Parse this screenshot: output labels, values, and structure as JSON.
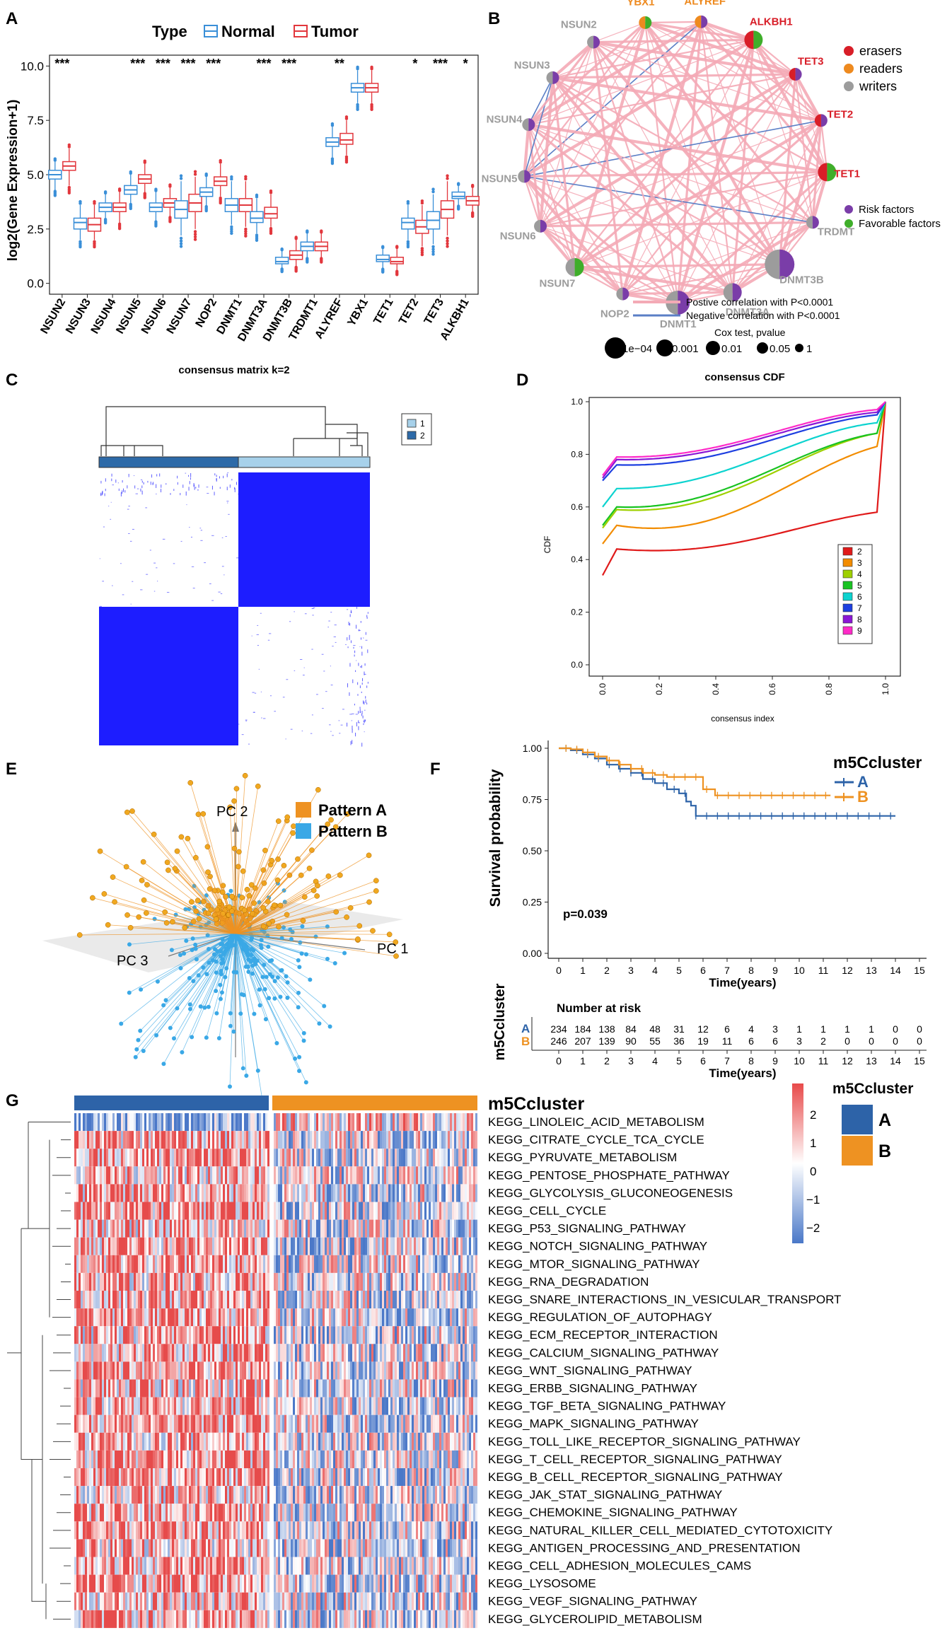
{
  "colors": {
    "normal": "#3a8fd8",
    "tumor": "#e2373d",
    "eraser": "#d81e28",
    "reader": "#ee8a1f",
    "writer": "#9c9c9c",
    "risk": "#7a3da8",
    "favorable": "#3fae2a",
    "pos_edge": "#f4aab6",
    "neg_edge": "#5b7fc6",
    "heat_blue": "#1d1dff",
    "clusterA": "#2d63a8",
    "clusterB": "#ee9222",
    "heat_high": "#e84a4a",
    "heat_low": "#4a78c8"
  },
  "panels": {
    "a": {
      "letter": "A",
      "chart_data": {
        "type": "boxplot",
        "legend_title": "Type",
        "legend": [
          "Normal",
          "Tumor"
        ],
        "ylabel": "log2(Gene Expression+1)",
        "ylim": [
          -0.5,
          10.5
        ],
        "yticks": [
          "0.0",
          "2.5",
          "5.0",
          "7.5",
          "10.0"
        ],
        "categories": [
          "NSUN2",
          "NSUN3",
          "NSUN4",
          "NSUN5",
          "NSUN6",
          "NSUN7",
          "NOP2",
          "DNMT1",
          "DNMT3A",
          "DNMT3B",
          "TRDMT1",
          "ALYREF",
          "YBX1",
          "TET1",
          "TET2",
          "TET3",
          "ALKBH1"
        ],
        "significance": [
          "***",
          "",
          "",
          "***",
          "***",
          "***",
          "***",
          "",
          "***",
          "***",
          "",
          "**",
          "",
          "",
          "*",
          "***",
          "*"
        ],
        "series": [
          {
            "name": "Normal",
            "boxes": [
              [
                4.3,
                4.8,
                5.0,
                5.2,
                5.6
              ],
              [
                2.0,
                2.5,
                2.8,
                3.0,
                3.6
              ],
              [
                3.0,
                3.3,
                3.5,
                3.7,
                4.1
              ],
              [
                3.7,
                4.1,
                4.3,
                4.5,
                5.0
              ],
              [
                2.9,
                3.3,
                3.5,
                3.7,
                4.2
              ],
              [
                2.2,
                3.0,
                3.4,
                3.8,
                4.7
              ],
              [
                3.6,
                4.0,
                4.2,
                4.4,
                4.9
              ],
              [
                2.7,
                3.3,
                3.6,
                3.9,
                4.7
              ],
              [
                2.3,
                2.8,
                3.0,
                3.3,
                3.9
              ],
              [
                0.7,
                0.9,
                1.0,
                1.2,
                1.5
              ],
              [
                1.2,
                1.5,
                1.7,
                1.9,
                2.3
              ],
              [
                5.8,
                6.3,
                6.5,
                6.7,
                7.2
              ],
              [
                8.3,
                8.8,
                9.0,
                9.2,
                9.8
              ],
              [
                0.7,
                1.0,
                1.1,
                1.3,
                1.6
              ],
              [
                2.0,
                2.5,
                2.8,
                3.0,
                3.6
              ],
              [
                1.8,
                2.5,
                2.9,
                3.3,
                4.1
              ],
              [
                3.6,
                3.9,
                4.0,
                4.2,
                4.5
              ]
            ]
          },
          {
            "name": "Tumor",
            "boxes": [
              [
                4.5,
                5.2,
                5.4,
                5.6,
                6.2
              ],
              [
                2.0,
                2.4,
                2.7,
                3.0,
                3.6
              ],
              [
                2.8,
                3.3,
                3.5,
                3.7,
                4.2
              ],
              [
                4.2,
                4.6,
                4.8,
                5.0,
                5.5
              ],
              [
                3.1,
                3.5,
                3.7,
                3.9,
                4.4
              ],
              [
                2.5,
                3.3,
                3.7,
                4.1,
                4.9
              ],
              [
                4.0,
                4.5,
                4.7,
                4.9,
                5.5
              ],
              [
                2.6,
                3.3,
                3.6,
                3.9,
                4.7
              ],
              [
                2.6,
                3.0,
                3.2,
                3.5,
                4.1
              ],
              [
                0.8,
                1.1,
                1.3,
                1.5,
                2.0
              ],
              [
                1.2,
                1.5,
                1.7,
                1.9,
                2.3
              ],
              [
                5.9,
                6.4,
                6.6,
                6.9,
                7.5
              ],
              [
                8.3,
                8.8,
                9.0,
                9.2,
                9.8
              ],
              [
                0.6,
                0.9,
                1.0,
                1.2,
                1.6
              ],
              [
                1.7,
                2.3,
                2.6,
                2.9,
                3.6
              ],
              [
                2.2,
                3.0,
                3.4,
                3.8,
                4.7
              ],
              [
                3.3,
                3.6,
                3.8,
                4.0,
                4.4
              ]
            ]
          }
        ]
      }
    },
    "b": {
      "letter": "B",
      "nodes": [
        {
          "name": "YBX1",
          "role": "reader",
          "factor": "favorable",
          "size": 1
        },
        {
          "name": "ALYREF",
          "role": "reader",
          "factor": "risk",
          "size": 1
        },
        {
          "name": "ALKBH1",
          "role": "eraser",
          "factor": "favorable",
          "size": 2
        },
        {
          "name": "TET3",
          "role": "eraser",
          "factor": "risk",
          "size": 1
        },
        {
          "name": "TET2",
          "role": "eraser",
          "factor": "risk",
          "size": 1
        },
        {
          "name": "TET1",
          "role": "eraser",
          "factor": "favorable",
          "size": 2
        },
        {
          "name": "TRDMT",
          "role": "writer",
          "factor": "risk",
          "size": 1
        },
        {
          "name": "DNMT3B",
          "role": "writer",
          "factor": "risk",
          "size": 4
        },
        {
          "name": "DNMT3A",
          "role": "writer",
          "factor": "risk",
          "size": 2
        },
        {
          "name": "DNMT1",
          "role": "writer",
          "factor": "risk",
          "size": 3
        },
        {
          "name": "NOP2",
          "role": "writer",
          "factor": "risk",
          "size": 1
        },
        {
          "name": "NSUN7",
          "role": "writer",
          "factor": "favorable",
          "size": 2
        },
        {
          "name": "NSUN6",
          "role": "writer",
          "factor": "risk",
          "size": 1
        },
        {
          "name": "NSUN5",
          "role": "writer",
          "factor": "risk",
          "size": 1
        },
        {
          "name": "NSUN4",
          "role": "writer",
          "factor": "risk",
          "size": 1
        },
        {
          "name": "NSUN3",
          "role": "writer",
          "factor": "risk",
          "size": 1
        },
        {
          "name": "NSUN2",
          "role": "writer",
          "factor": "risk",
          "size": 1
        }
      ],
      "negative_edges": [
        [
          "ALYREF",
          "NSUN5"
        ],
        [
          "TET2",
          "NSUN5"
        ],
        [
          "NSUN3",
          "NSUN5"
        ],
        [
          "TRDMT",
          "NSUN5"
        ],
        [
          "NSUN3",
          "NSUN4"
        ]
      ],
      "legend_roles": [
        "erasers",
        "readers",
        "writers"
      ],
      "legend_factors": [
        "Risk factors",
        "Favorable factors"
      ],
      "legend_edges": [
        "Postive correlation with P<0.0001",
        "Negative correlation with P<0.0001"
      ],
      "cox_title": "Cox test, pvalue",
      "cox_levels": [
        "1e−04",
        "0.001",
        "0.01",
        "0.05",
        "1"
      ]
    },
    "c": {
      "letter": "C",
      "title": "consensus matrix k=2",
      "legend": [
        "1",
        "2"
      ]
    },
    "d": {
      "letter": "D",
      "chart_data": {
        "type": "line",
        "title": "consensus CDF",
        "xlabel": "consensus index",
        "ylabel": "CDF",
        "xticks": [
          "0.0",
          "0.2",
          "0.4",
          "0.6",
          "0.8",
          "1.0"
        ],
        "yticks": [
          "0.0",
          "0.2",
          "0.4",
          "0.6",
          "0.8",
          "1.0"
        ],
        "xlim": [
          0,
          1
        ],
        "ylim": [
          0,
          1
        ],
        "series": [
          {
            "name": "2",
            "color": "#e01a1a",
            "y0": 0.34,
            "y1": 0.44,
            "mid": 0.47,
            "y98": 0.58
          },
          {
            "name": "3",
            "color": "#f28c00",
            "y0": 0.46,
            "y1": 0.53,
            "mid": 0.6,
            "y98": 0.83
          },
          {
            "name": "4",
            "color": "#9ed000",
            "y0": 0.52,
            "y1": 0.59,
            "mid": 0.7,
            "y98": 0.88
          },
          {
            "name": "5",
            "color": "#19c322",
            "y0": 0.53,
            "y1": 0.6,
            "mid": 0.72,
            "y98": 0.88
          },
          {
            "name": "6",
            "color": "#0cd3cf",
            "y0": 0.6,
            "y1": 0.67,
            "mid": 0.79,
            "y98": 0.92
          },
          {
            "name": "7",
            "color": "#1d3fe0",
            "y0": 0.7,
            "y1": 0.76,
            "mid": 0.84,
            "y98": 0.95
          },
          {
            "name": "8",
            "color": "#8b17d6",
            "y0": 0.71,
            "y1": 0.78,
            "mid": 0.86,
            "y98": 0.96
          },
          {
            "name": "9",
            "color": "#ff2ac8",
            "y0": 0.72,
            "y1": 0.79,
            "mid": 0.87,
            "y98": 0.97
          }
        ]
      }
    },
    "e": {
      "letter": "E",
      "axes": [
        "PC 1",
        "PC 2",
        "PC 3"
      ],
      "legend": [
        "Pattern A",
        "Pattern B"
      ]
    },
    "f": {
      "letter": "F",
      "chart_data": {
        "type": "line",
        "legend_title": "m5Ccluster",
        "legend": [
          "A",
          "B"
        ],
        "ylabel": "Survival probability",
        "xlabel": "Time(years)",
        "xlim": [
          0,
          15
        ],
        "ylim": [
          0,
          1
        ],
        "yticks": [
          "0.00",
          "0.25",
          "0.50",
          "0.75",
          "1.00"
        ],
        "xticks": [
          "0",
          "1",
          "2",
          "3",
          "4",
          "5",
          "6",
          "7",
          "8",
          "9",
          "10",
          "11",
          "12",
          "13",
          "14",
          "15"
        ],
        "pvalue": "p=0.039",
        "series": [
          {
            "name": "A",
            "color": "#2d63a8",
            "steps": [
              [
                0,
                1
              ],
              [
                0.5,
                0.99
              ],
              [
                1,
                0.97
              ],
              [
                1.5,
                0.95
              ],
              [
                2,
                0.92
              ],
              [
                2.5,
                0.9
              ],
              [
                3,
                0.88
              ],
              [
                3.5,
                0.85
              ],
              [
                4,
                0.83
              ],
              [
                4.5,
                0.8
              ],
              [
                5,
                0.78
              ],
              [
                5.3,
                0.74
              ],
              [
                5.5,
                0.72
              ],
              [
                5.7,
                0.67
              ],
              [
                14,
                0.67
              ]
            ]
          },
          {
            "name": "B",
            "color": "#ee9222",
            "steps": [
              [
                0,
                1
              ],
              [
                0.5,
                0.995
              ],
              [
                1,
                0.98
              ],
              [
                1.5,
                0.96
              ],
              [
                2,
                0.94
              ],
              [
                2.5,
                0.92
              ],
              [
                3,
                0.9
              ],
              [
                3.5,
                0.88
              ],
              [
                4,
                0.87
              ],
              [
                4.5,
                0.86
              ],
              [
                5.8,
                0.86
              ],
              [
                6,
                0.8
              ],
              [
                6.5,
                0.77
              ],
              [
                11.3,
                0.77
              ]
            ]
          }
        ],
        "risk_title": "Number at risk",
        "risk_ylabel": "m5Ccluster",
        "risk_A": [
          "234",
          "184",
          "138",
          "84",
          "48",
          "31",
          "12",
          "6",
          "4",
          "3",
          "1",
          "1",
          "1",
          "1",
          "0",
          "0"
        ],
        "risk_B": [
          "246",
          "207",
          "139",
          "90",
          "55",
          "36",
          "19",
          "11",
          "6",
          "6",
          "3",
          "2",
          "0",
          "0",
          "0",
          "0"
        ]
      }
    },
    "g": {
      "letter": "G",
      "title": "m5Ccluster",
      "legend_title": "m5Ccluster",
      "legend": [
        "A",
        "B"
      ],
      "scale_ticks": [
        "2",
        "1",
        "0",
        "−1",
        "−2"
      ],
      "pathways": [
        "KEGG_LINOLEIC_ACID_METABOLISM",
        "KEGG_CITRATE_CYCLE_TCA_CYCLE",
        "KEGG_PYRUVATE_METABOLISM",
        "KEGG_PENTOSE_PHOSPHATE_PATHWAY",
        "KEGG_GLYCOLYSIS_GLUCONEOGENESIS",
        "KEGG_CELL_CYCLE",
        "KEGG_P53_SIGNALING_PATHWAY",
        "KEGG_NOTCH_SIGNALING_PATHWAY",
        "KEGG_MTOR_SIGNALING_PATHWAY",
        "KEGG_RNA_DEGRADATION",
        "KEGG_SNARE_INTERACTIONS_IN_VESICULAR_TRANSPORT",
        "KEGG_REGULATION_OF_AUTOPHAGY",
        "KEGG_ECM_RECEPTOR_INTERACTION",
        "KEGG_CALCIUM_SIGNALING_PATHWAY",
        "KEGG_WNT_SIGNALING_PATHWAY",
        "KEGG_ERBB_SIGNALING_PATHWAY",
        "KEGG_TGF_BETA_SIGNALING_PATHWAY",
        "KEGG_MAPK_SIGNALING_PATHWAY",
        "KEGG_TOLL_LIKE_RECEPTOR_SIGNALING_PATHWAY",
        "KEGG_T_CELL_RECEPTOR_SIGNALING_PATHWAY",
        "KEGG_B_CELL_RECEPTOR_SIGNALING_PATHWAY",
        "KEGG_JAK_STAT_SIGNALING_PATHWAY",
        "KEGG_CHEMOKINE_SIGNALING_PATHWAY",
        "KEGG_NATURAL_KILLER_CELL_MEDIATED_CYTOTOXICITY",
        "KEGG_ANTIGEN_PROCESSING_AND_PRESENTATION",
        "KEGG_CELL_ADHESION_MOLECULES_CAMS",
        "KEGG_LYSOSOME",
        "KEGG_VEGF_SIGNALING_PATHWAY",
        "KEGG_GLYCEROLIPID_METABOLISM"
      ]
    }
  }
}
